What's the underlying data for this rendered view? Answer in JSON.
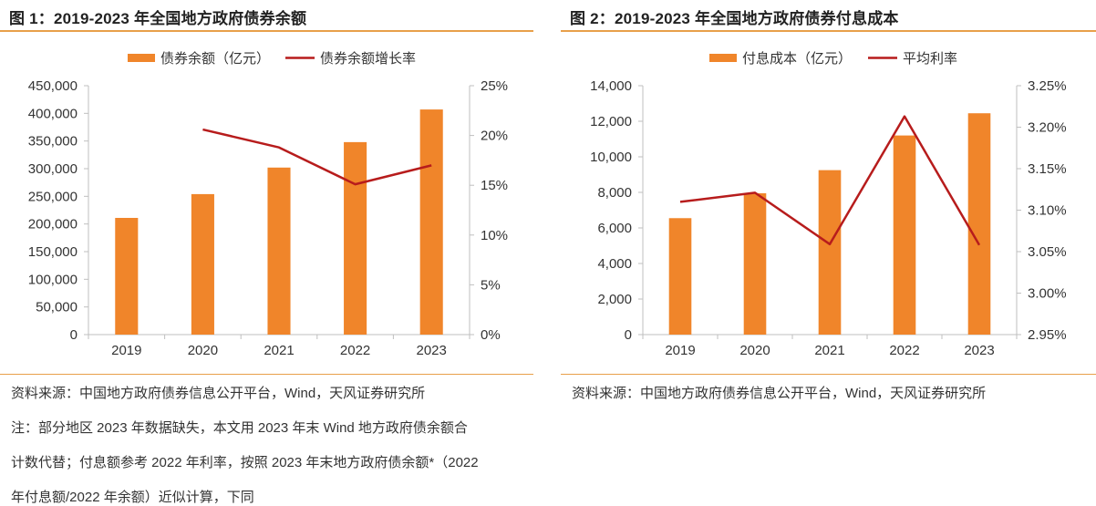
{
  "panel1": {
    "title": "图 1：2019-2023 年全国地方政府债券余额",
    "source": "资料来源：中国地方政府债券信息公开平台，Wind，天风证券研究所",
    "notes": [
      "注：部分地区 2023 年数据缺失，本文用 2023 年末 Wind 地方政府债余额合",
      "计数代替；付息额参考 2022 年利率，按照 2023 年末地方政府债余额*（2022",
      "年付息额/2022 年余额）近似计算，下同"
    ]
  },
  "panel2": {
    "title": "图 2：2019-2023 年全国地方政府债券付息成本",
    "source": "资料来源：中国地方政府债券信息公开平台，Wind，天风证券研究所"
  },
  "colors": {
    "bar": "#f0852a",
    "line": "#b71c1c",
    "rule": "#e8a04a",
    "axis": "#bfbfbf"
  },
  "chart_data": [
    {
      "type": "bar",
      "categories": [
        "2019",
        "2020",
        "2021",
        "2022",
        "2023"
      ],
      "series": [
        {
          "name": "债券余额（亿元）",
          "type": "bar",
          "axis": "left",
          "values": [
            211000,
            254000,
            302000,
            348000,
            407000
          ]
        },
        {
          "name": "债券余额增长率",
          "type": "line",
          "axis": "right",
          "values": [
            null,
            20.6,
            18.8,
            15.1,
            17.0
          ]
        }
      ],
      "ylim": [
        0,
        450000
      ],
      "ytick_step": 50000,
      "yticks": [
        "0",
        "50,000",
        "100,000",
        "150,000",
        "200,000",
        "250,000",
        "300,000",
        "350,000",
        "400,000",
        "450,000"
      ],
      "y2lim": [
        0,
        25
      ],
      "y2tick_step": 5,
      "y2ticks": [
        "0%",
        "5%",
        "10%",
        "15%",
        "20%",
        "25%"
      ],
      "legend": "top-center",
      "grid": false
    },
    {
      "type": "bar",
      "categories": [
        "2019",
        "2020",
        "2021",
        "2022",
        "2023"
      ],
      "series": [
        {
          "name": "付息成本（亿元）",
          "type": "bar",
          "axis": "left",
          "values": [
            6550,
            7950,
            9250,
            11200,
            12450
          ]
        },
        {
          "name": "平均利率",
          "type": "line",
          "axis": "right",
          "values": [
            3.11,
            3.121,
            3.059,
            3.213,
            3.058
          ]
        }
      ],
      "ylim": [
        0,
        14000
      ],
      "ytick_step": 2000,
      "yticks": [
        "0",
        "2,000",
        "4,000",
        "6,000",
        "8,000",
        "10,000",
        "12,000",
        "14,000"
      ],
      "y2lim": [
        2.95,
        3.25
      ],
      "y2tick_step": 0.05,
      "y2ticks": [
        "2.95%",
        "3.00%",
        "3.05%",
        "3.10%",
        "3.15%",
        "3.20%",
        "3.25%"
      ],
      "legend": "top-center",
      "grid": false
    }
  ]
}
